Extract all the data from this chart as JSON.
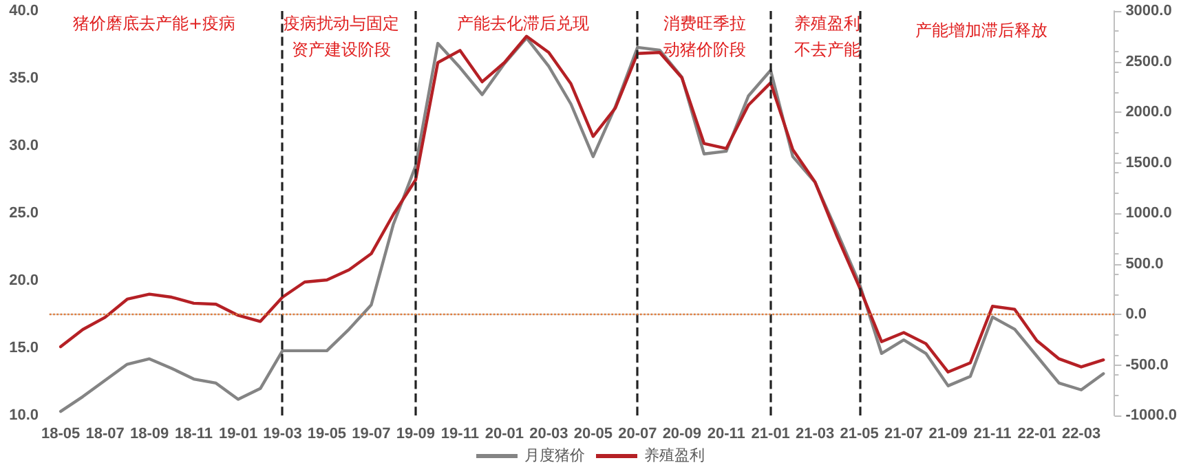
{
  "chart_data": {
    "type": "line",
    "categories": [
      "18-05",
      null,
      "18-07",
      null,
      "18-09",
      null,
      "18-11",
      null,
      "19-01",
      null,
      "19-03",
      null,
      "19-05",
      null,
      "19-07",
      null,
      "19-09",
      null,
      "19-11",
      null,
      "20-01",
      null,
      "20-03",
      null,
      "20-05",
      null,
      "20-07",
      null,
      "20-09",
      null,
      "20-11",
      null,
      "21-01",
      null,
      "21-03",
      null,
      "21-05",
      null,
      "21-07",
      null,
      "21-09",
      null,
      "21-11",
      null,
      "22-01",
      null,
      "22-03",
      null
    ],
    "series": [
      {
        "name": "月度猪价",
        "color": "#848484",
        "values": [
          10.3,
          11.4,
          12.6,
          13.8,
          14.2,
          13.5,
          12.7,
          12.4,
          11.2,
          12.0,
          14.8,
          14.8,
          14.8,
          16.4,
          18.2,
          24.2,
          28.5,
          37.6,
          35.8,
          33.8,
          36.1,
          38.0,
          35.9,
          33.1,
          29.2,
          32.9,
          37.3,
          37.1,
          35.1,
          29.4,
          29.6,
          33.7,
          35.6,
          29.2,
          27.3,
          23.6,
          19.8,
          14.6,
          15.6,
          14.6,
          12.2,
          12.9,
          17.3,
          16.4,
          14.4,
          12.4,
          11.9,
          13.1
        ]
      },
      {
        "name": "养殖盈利",
        "color": "#b52025",
        "axis": "y2",
        "values": [
          -320,
          -150,
          -30,
          150,
          200,
          170,
          110,
          100,
          -10,
          -70,
          170,
          320,
          340,
          440,
          600,
          990,
          1330,
          2490,
          2610,
          2300,
          2490,
          2750,
          2590,
          2280,
          1760,
          2040,
          2580,
          2590,
          2340,
          1690,
          1640,
          2070,
          2290,
          1630,
          1310,
          770,
          270,
          -270,
          -180,
          -290,
          -570,
          -480,
          80,
          50,
          -260,
          -440,
          -520,
          -450
        ]
      }
    ],
    "ylim": [
      10,
      40
    ],
    "yticks": [
      {
        "value": 10,
        "label": "10.0"
      },
      {
        "value": 15,
        "label": "15.0"
      },
      {
        "value": 20,
        "label": "20.0"
      },
      {
        "value": 25,
        "label": "25.0"
      },
      {
        "value": 30,
        "label": "30.0"
      },
      {
        "value": 35,
        "label": "35.0"
      },
      {
        "value": 40,
        "label": "40.0"
      }
    ],
    "y2lim": [
      -1000,
      3000
    ],
    "y2ticks": [
      {
        "value": -1000,
        "label": "-1000.0"
      },
      {
        "value": -500,
        "label": "-500.0"
      },
      {
        "value": 0,
        "label": "0.0"
      },
      {
        "value": 500,
        "label": "500.0"
      },
      {
        "value": 1000,
        "label": "1000.0"
      },
      {
        "value": 1500,
        "label": "1500.0"
      },
      {
        "value": 2000,
        "label": "2000.0"
      },
      {
        "value": 2500,
        "label": "2500.0"
      },
      {
        "value": 3000,
        "label": "3000.0"
      }
    ],
    "ref_lines": [
      {
        "axis": "y2",
        "value": 0,
        "color": "#e07b39",
        "line_style": "dotted"
      },
      {
        "axis": "x",
        "value": "19-03",
        "color": "#222222",
        "line_style": "dashed"
      },
      {
        "axis": "x",
        "value": "19-09",
        "color": "#222222",
        "line_style": "dashed"
      },
      {
        "axis": "x",
        "value": "20-07",
        "color": "#222222",
        "line_style": "dashed"
      },
      {
        "axis": "x",
        "value": "21-01",
        "color": "#222222",
        "line_style": "dashed"
      },
      {
        "axis": "x",
        "value": "21-05",
        "color": "#222222",
        "line_style": "dashed"
      }
    ],
    "annotations": [
      "猪价磨底去产能+疫病",
      "疫病扰动与固定",
      "资产建设阶段",
      "产能去化滞后兑现",
      "消费旺季拉",
      "动猪价阶段",
      "养殖盈利",
      "不去产能",
      "产能增加滞后释放"
    ],
    "legend": "bottom",
    "grid": false,
    "marker": "none",
    "line_style": "solid"
  }
}
